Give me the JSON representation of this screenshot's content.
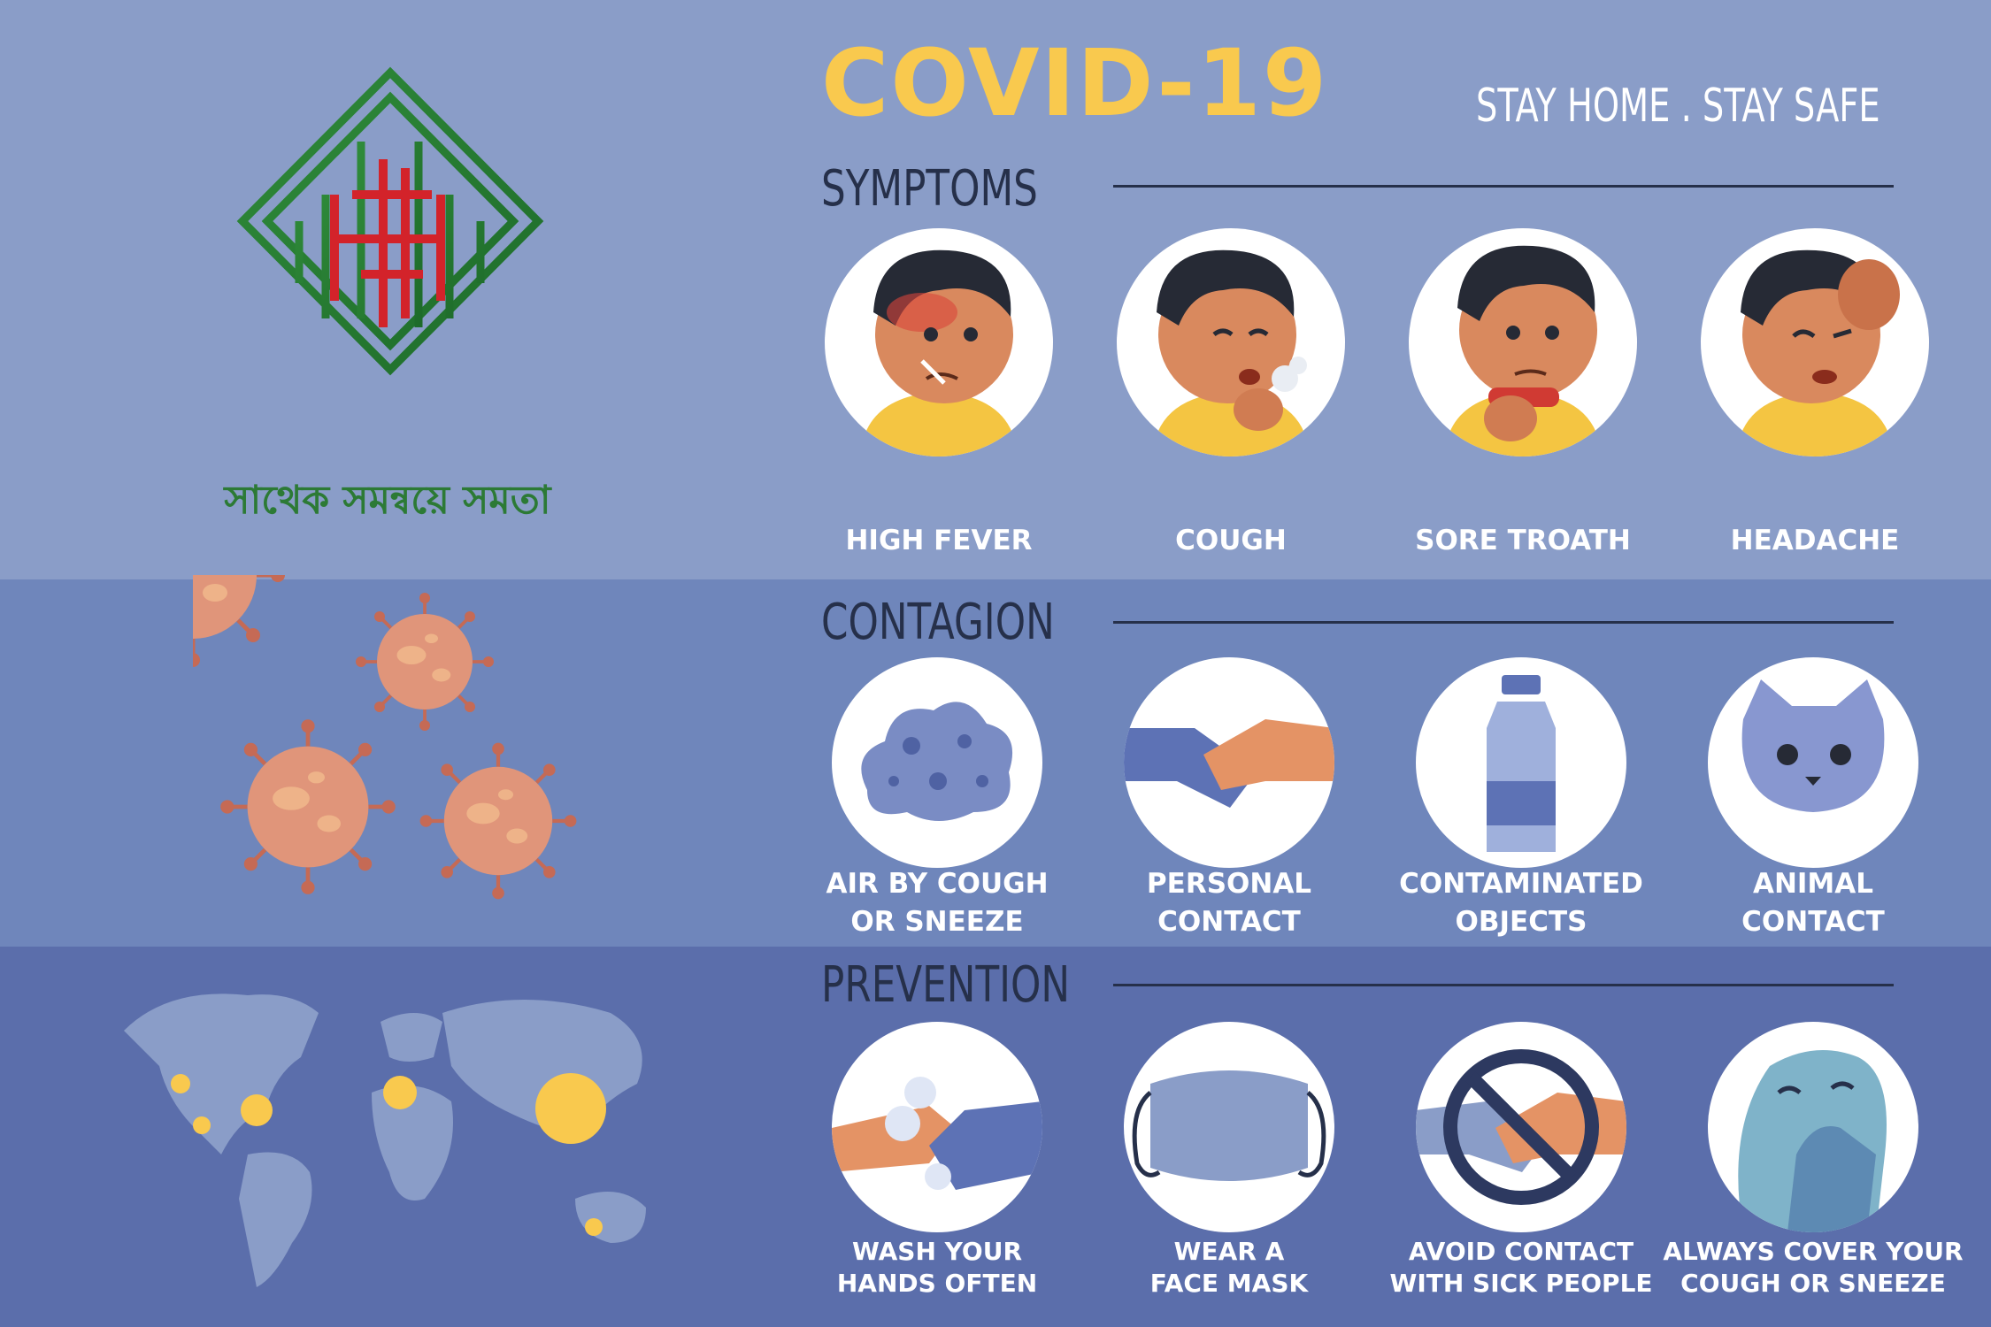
{
  "header": {
    "title": "COVID-19",
    "tagline": "STAY HOME . STAY SAFE"
  },
  "sections": {
    "symptoms": {
      "heading": "SYMPTOMS",
      "items": [
        {
          "label": "HIGH FEVER",
          "icon": "fever-icon"
        },
        {
          "label": "COUGH",
          "icon": "cough-icon"
        },
        {
          "label": "SORE TROATH",
          "icon": "sore-throat-icon"
        },
        {
          "label": "HEADACHE",
          "icon": "headache-icon"
        }
      ]
    },
    "contagion": {
      "heading": "CONTAGION",
      "items": [
        {
          "line1": "AIR BY COUGH",
          "line2": "OR SNEEZE",
          "icon": "air-cloud-icon"
        },
        {
          "line1": "PERSONAL",
          "line2": "CONTACT",
          "icon": "handshake-icon"
        },
        {
          "line1": "CONTAMINATED",
          "line2": "OBJECTS",
          "icon": "bottle-icon"
        },
        {
          "line1": "ANIMAL",
          "line2": "CONTACT",
          "icon": "cat-icon"
        }
      ]
    },
    "prevention": {
      "heading": "PREVENTION",
      "items": [
        {
          "line1": "WASH YOUR",
          "line2": "HANDS OFTEN",
          "icon": "hand-wash-icon"
        },
        {
          "line1": "WEAR A",
          "line2": "FACE MASK",
          "icon": "face-mask-icon"
        },
        {
          "line1": "AVOID CONTACT",
          "line2": "WITH SICK PEOPLE",
          "icon": "no-handshake-icon"
        },
        {
          "line1": "ALWAYS COVER YOUR",
          "line2": "COUGH OR SNEEZE",
          "icon": "cover-mouth-icon"
        }
      ]
    }
  },
  "logo": {
    "text": "সাথেক সমন্বয়ে সমতা",
    "icon": "maze-logo-icon"
  },
  "colors": {
    "top": "#8a9dc8",
    "middle": "#6f86bb",
    "bottom": "#5b6eab",
    "title": "#f9c94e",
    "dark": "#26304a",
    "virus": "#e0957a"
  }
}
